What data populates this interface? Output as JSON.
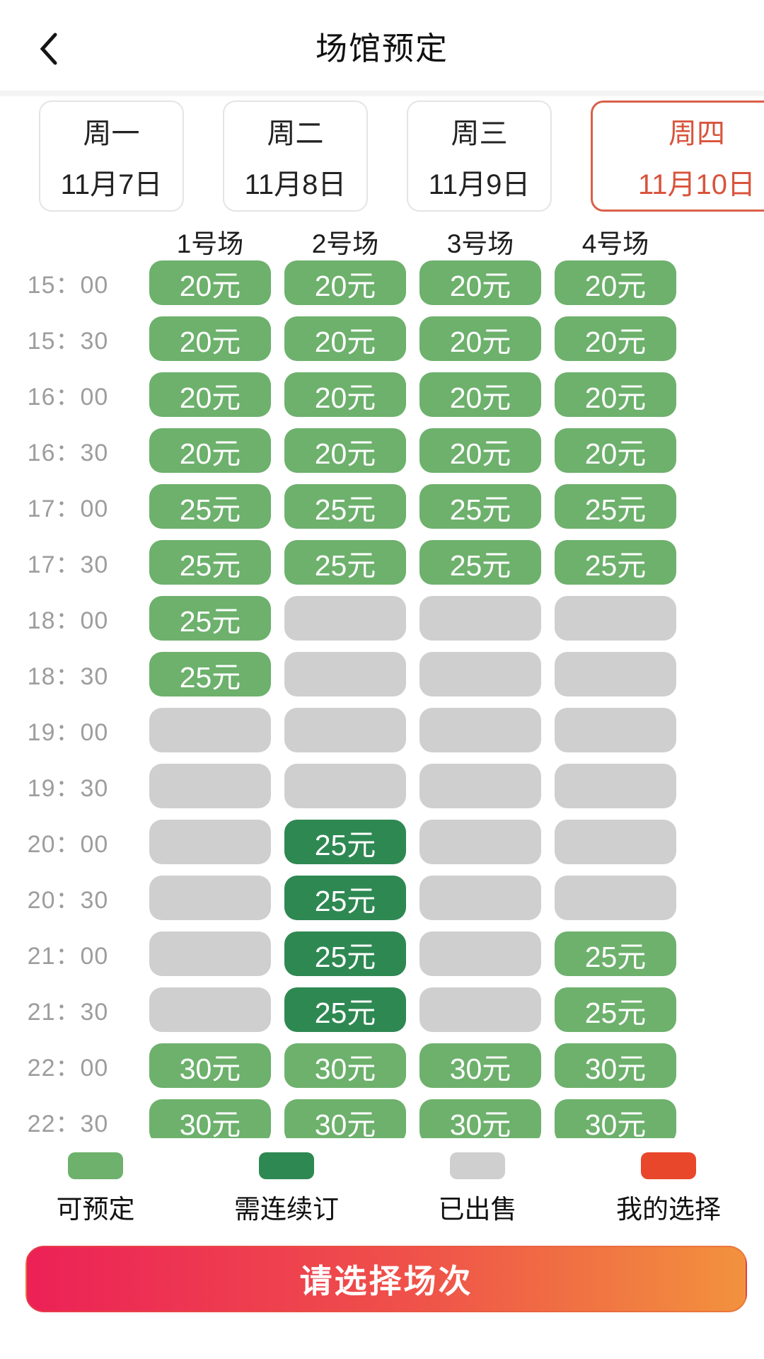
{
  "header": {
    "title": "场馆预定"
  },
  "date_tabs": [
    {
      "weekday": "周一",
      "date": "11月7日",
      "selected": false
    },
    {
      "weekday": "周二",
      "date": "11月8日",
      "selected": false
    },
    {
      "weekday": "周三",
      "date": "11月9日",
      "selected": false
    },
    {
      "weekday": "周四",
      "date": "11月10日",
      "selected": true
    }
  ],
  "courts": [
    "1号场",
    "2号场",
    "3号场",
    "4号场"
  ],
  "grid": {
    "rows": [
      {
        "time": "15：00",
        "cells": [
          {
            "state": "available",
            "price": "20元"
          },
          {
            "state": "available",
            "price": "20元"
          },
          {
            "state": "available",
            "price": "20元"
          },
          {
            "state": "available",
            "price": "20元"
          }
        ]
      },
      {
        "time": "15：30",
        "cells": [
          {
            "state": "available",
            "price": "20元"
          },
          {
            "state": "available",
            "price": "20元"
          },
          {
            "state": "available",
            "price": "20元"
          },
          {
            "state": "available",
            "price": "20元"
          }
        ]
      },
      {
        "time": "16：00",
        "cells": [
          {
            "state": "available",
            "price": "20元"
          },
          {
            "state": "available",
            "price": "20元"
          },
          {
            "state": "available",
            "price": "20元"
          },
          {
            "state": "available",
            "price": "20元"
          }
        ]
      },
      {
        "time": "16：30",
        "cells": [
          {
            "state": "available",
            "price": "20元"
          },
          {
            "state": "available",
            "price": "20元"
          },
          {
            "state": "available",
            "price": "20元"
          },
          {
            "state": "available",
            "price": "20元"
          }
        ]
      },
      {
        "time": "17：00",
        "cells": [
          {
            "state": "available",
            "price": "25元"
          },
          {
            "state": "available",
            "price": "25元"
          },
          {
            "state": "available",
            "price": "25元"
          },
          {
            "state": "available",
            "price": "25元"
          }
        ]
      },
      {
        "time": "17：30",
        "cells": [
          {
            "state": "available",
            "price": "25元"
          },
          {
            "state": "available",
            "price": "25元"
          },
          {
            "state": "available",
            "price": "25元"
          },
          {
            "state": "available",
            "price": "25元"
          }
        ]
      },
      {
        "time": "18：00",
        "cells": [
          {
            "state": "available",
            "price": "25元"
          },
          {
            "state": "sold",
            "price": ""
          },
          {
            "state": "sold",
            "price": ""
          },
          {
            "state": "sold",
            "price": ""
          }
        ]
      },
      {
        "time": "18：30",
        "cells": [
          {
            "state": "available",
            "price": "25元"
          },
          {
            "state": "sold",
            "price": ""
          },
          {
            "state": "sold",
            "price": ""
          },
          {
            "state": "sold",
            "price": ""
          }
        ]
      },
      {
        "time": "19：00",
        "cells": [
          {
            "state": "sold",
            "price": ""
          },
          {
            "state": "sold",
            "price": ""
          },
          {
            "state": "sold",
            "price": ""
          },
          {
            "state": "sold",
            "price": ""
          }
        ]
      },
      {
        "time": "19：30",
        "cells": [
          {
            "state": "sold",
            "price": ""
          },
          {
            "state": "sold",
            "price": ""
          },
          {
            "state": "sold",
            "price": ""
          },
          {
            "state": "sold",
            "price": ""
          }
        ]
      },
      {
        "time": "20：00",
        "cells": [
          {
            "state": "sold",
            "price": ""
          },
          {
            "state": "consecutive",
            "price": "25元"
          },
          {
            "state": "sold",
            "price": ""
          },
          {
            "state": "sold",
            "price": ""
          }
        ]
      },
      {
        "time": "20：30",
        "cells": [
          {
            "state": "sold",
            "price": ""
          },
          {
            "state": "consecutive",
            "price": "25元"
          },
          {
            "state": "sold",
            "price": ""
          },
          {
            "state": "sold",
            "price": ""
          }
        ]
      },
      {
        "time": "21：00",
        "cells": [
          {
            "state": "sold",
            "price": ""
          },
          {
            "state": "consecutive",
            "price": "25元"
          },
          {
            "state": "sold",
            "price": ""
          },
          {
            "state": "available",
            "price": "25元"
          }
        ]
      },
      {
        "time": "21：30",
        "cells": [
          {
            "state": "sold",
            "price": ""
          },
          {
            "state": "consecutive",
            "price": "25元"
          },
          {
            "state": "sold",
            "price": ""
          },
          {
            "state": "available",
            "price": "25元"
          }
        ]
      },
      {
        "time": "22：00",
        "cells": [
          {
            "state": "available",
            "price": "30元"
          },
          {
            "state": "available",
            "price": "30元"
          },
          {
            "state": "available",
            "price": "30元"
          },
          {
            "state": "available",
            "price": "30元"
          }
        ]
      },
      {
        "time": "22：30",
        "cells": [
          {
            "state": "available",
            "price": "30元"
          },
          {
            "state": "available",
            "price": "30元"
          },
          {
            "state": "available",
            "price": "30元"
          },
          {
            "state": "available",
            "price": "30元"
          }
        ]
      }
    ]
  },
  "legend": [
    {
      "label": "可预定",
      "color": "available"
    },
    {
      "label": "需连续订",
      "color": "consecutive"
    },
    {
      "label": "已出售",
      "color": "sold"
    },
    {
      "label": "我的选择",
      "color": "selection"
    }
  ],
  "cta": {
    "label": "请选择场次"
  },
  "colors": {
    "available": "#6DB16C",
    "consecutive": "#2E8852",
    "sold": "#CFCFCF",
    "selection": "#E8472B",
    "selected_text": "#D8543C",
    "selected_border": "#DA6049",
    "cta_start": "#EC2157",
    "cta_mid": "#EF5349",
    "cta_end": "#F2923D"
  }
}
